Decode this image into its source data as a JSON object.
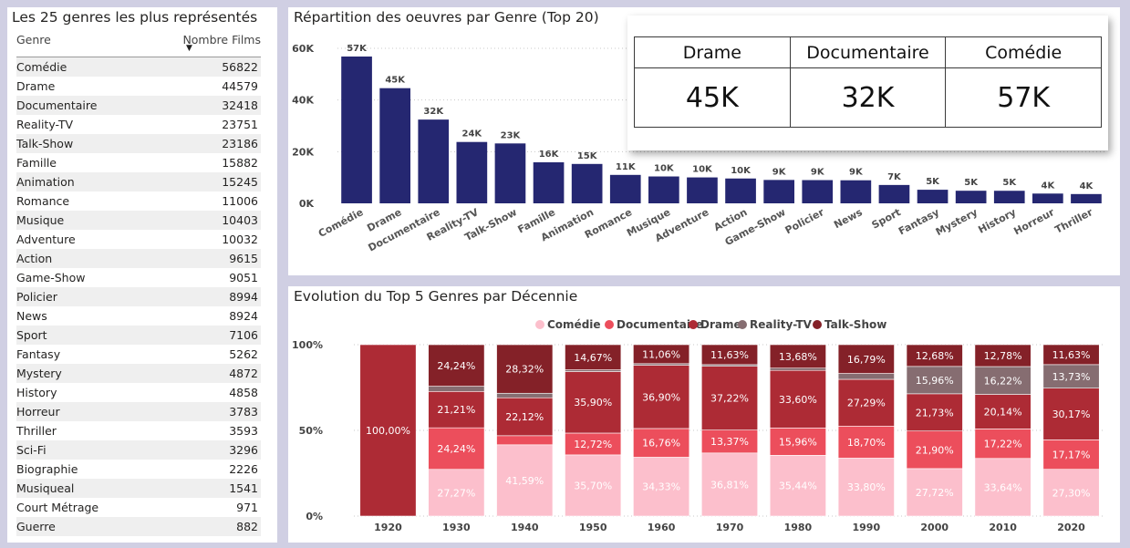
{
  "genre_table": {
    "title": "Les 25 genres les plus représentés",
    "col_genre": "Genre",
    "col_count": "Nombre Films",
    "sort_arrow": "▼",
    "rows": [
      {
        "genre": "Comédie",
        "count": "56822"
      },
      {
        "genre": "Drame",
        "count": "44579"
      },
      {
        "genre": "Documentaire",
        "count": "32418"
      },
      {
        "genre": "Reality-TV",
        "count": "23751"
      },
      {
        "genre": "Talk-Show",
        "count": "23186"
      },
      {
        "genre": "Famille",
        "count": "15882"
      },
      {
        "genre": "Animation",
        "count": "15245"
      },
      {
        "genre": "Romance",
        "count": "11006"
      },
      {
        "genre": "Musique",
        "count": "10403"
      },
      {
        "genre": "Adventure",
        "count": "10032"
      },
      {
        "genre": "Action",
        "count": "9615"
      },
      {
        "genre": "Game-Show",
        "count": "9051"
      },
      {
        "genre": "Policier",
        "count": "8994"
      },
      {
        "genre": "News",
        "count": "8924"
      },
      {
        "genre": "Sport",
        "count": "7106"
      },
      {
        "genre": "Fantasy",
        "count": "5262"
      },
      {
        "genre": "Mystery",
        "count": "4872"
      },
      {
        "genre": "History",
        "count": "4858"
      },
      {
        "genre": "Horreur",
        "count": "3783"
      },
      {
        "genre": "Thriller",
        "count": "3593"
      },
      {
        "genre": "Sci-Fi",
        "count": "3296"
      },
      {
        "genre": "Biographie",
        "count": "2226"
      },
      {
        "genre": "Musiqueal",
        "count": "1541"
      },
      {
        "genre": "Court Métrage",
        "count": "971"
      },
      {
        "genre": "Guerre",
        "count": "882"
      }
    ]
  },
  "kpi": {
    "cards": [
      {
        "label": "Drame",
        "value": "45K"
      },
      {
        "label": "Documentaire",
        "value": "32K"
      },
      {
        "label": "Comédie",
        "value": "57K"
      }
    ]
  },
  "colors": {
    "bar": "#252771",
    "comedie": "#fcbfcc",
    "documentaire": "#ec4e5c",
    "drame": "#ad2b35",
    "reality": "#866d71",
    "talkshow": "#842128"
  },
  "chart_data": [
    {
      "type": "bar",
      "title": "Répartition des oeuvres par Genre (Top 20)",
      "categories": [
        "Comédie",
        "Drame",
        "Documentaire",
        "Reality-TV",
        "Talk-Show",
        "Famille",
        "Animation",
        "Romance",
        "Musique",
        "Adventure",
        "Action",
        "Game-Show",
        "Policier",
        "News",
        "Sport",
        "Fantasy",
        "Mystery",
        "History",
        "Horreur",
        "Thriller"
      ],
      "values": [
        56822,
        44579,
        32418,
        23751,
        23186,
        15882,
        15245,
        11006,
        10403,
        10032,
        9615,
        9051,
        8994,
        8924,
        7106,
        5262,
        4872,
        4858,
        3783,
        3593
      ],
      "data_labels": [
        "57K",
        "45K",
        "32K",
        "24K",
        "23K",
        "16K",
        "15K",
        "11K",
        "10K",
        "10K",
        "10K",
        "9K",
        "9K",
        "9K",
        "7K",
        "5K",
        "5K",
        "5K",
        "4K",
        "4K"
      ],
      "ylim": [
        0,
        60000
      ],
      "yticks": [
        0,
        20000,
        40000,
        60000
      ],
      "ytick_labels": [
        "0K",
        "20K",
        "40K",
        "60K"
      ],
      "grid": true
    },
    {
      "type": "bar",
      "stacked": "percent",
      "title": "Evolution du Top 5 Genres par Décennie",
      "categories": [
        "1920",
        "1930",
        "1940",
        "1950",
        "1960",
        "1970",
        "1980",
        "1990",
        "2000",
        "2010",
        "2020"
      ],
      "legend_position": "top-center",
      "ylim": [
        0,
        100
      ],
      "yticks": [
        0,
        50,
        100
      ],
      "ytick_labels": [
        "0%",
        "50%",
        "100%"
      ],
      "grid": true,
      "series": [
        {
          "name": "Comédie",
          "key": "comedie",
          "values": [
            0,
            27.27,
            41.59,
            35.7,
            34.33,
            36.81,
            35.44,
            33.8,
            27.72,
            33.64,
            27.3
          ],
          "labels": [
            "",
            "27,27%",
            "41,59%",
            "35,70%",
            "34,33%",
            "36,81%",
            "35,44%",
            "33,80%",
            "27,72%",
            "33,64%",
            "27,30%"
          ]
        },
        {
          "name": "Documentaire",
          "key": "documentaire",
          "values": [
            0,
            24.24,
            5.31,
            12.72,
            16.76,
            13.37,
            15.96,
            18.7,
            21.9,
            17.22,
            17.17
          ],
          "labels": [
            "",
            "24,24%",
            "",
            "12,72%",
            "16,76%",
            "13,37%",
            "15,96%",
            "18,70%",
            "21,90%",
            "17,22%",
            "17,17%"
          ]
        },
        {
          "name": "Drame",
          "key": "drame",
          "values": [
            100,
            21.21,
            22.12,
            35.9,
            36.9,
            37.22,
            33.6,
            27.29,
            21.73,
            20.14,
            30.17
          ],
          "labels": [
            "100,00%",
            "21,21%",
            "22,12%",
            "35,90%",
            "36,90%",
            "37,22%",
            "33,60%",
            "27,29%",
            "21,73%",
            "20,14%",
            "30,17%"
          ]
        },
        {
          "name": "Reality-TV",
          "key": "reality",
          "values": [
            0,
            3.03,
            2.65,
            1.01,
            0.95,
            0.97,
            1.32,
            3.42,
            15.96,
            16.22,
            13.73
          ],
          "labels": [
            "",
            "",
            "",
            "",
            "",
            "",
            "",
            "",
            "15,96%",
            "16,22%",
            "13,73%"
          ]
        },
        {
          "name": "Talk-Show",
          "key": "talkshow",
          "values": [
            0,
            24.24,
            28.32,
            14.67,
            11.06,
            11.63,
            13.68,
            16.79,
            12.68,
            12.78,
            11.63
          ],
          "labels": [
            "",
            "24,24%",
            "28,32%",
            "14,67%",
            "11,06%",
            "11,63%",
            "13,68%",
            "16,79%",
            "12,68%",
            "12,78%",
            "11,63%"
          ]
        }
      ]
    }
  ]
}
